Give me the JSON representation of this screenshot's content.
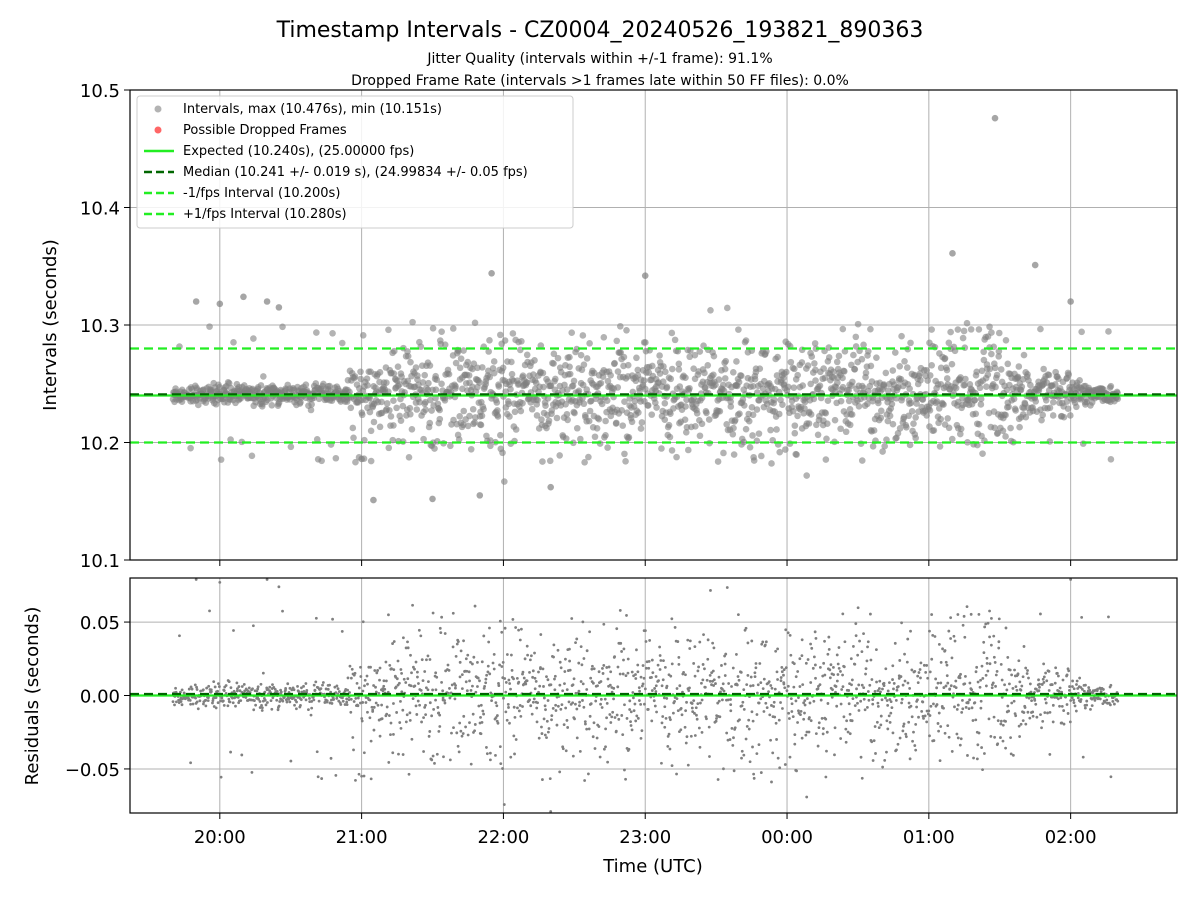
{
  "figure": {
    "title": "Timestamp Intervals - CZ0004_20240526_193821_890363",
    "subtitle1": "Jitter Quality (intervals within +/-1 frame): 91.1%",
    "subtitle2": "Dropped Frame Rate (intervals >1 frames late within 50 FF files): 0.0%"
  },
  "colors": {
    "points": "#808080",
    "dropped": "#ff6666",
    "expected": "#22ee22",
    "median": "#006600",
    "bounds": "#22ee22",
    "grid": "#b0b0b0"
  },
  "chart_data": [
    {
      "type": "scatter",
      "name": "intervals-panel",
      "ylabel": "Intervals (seconds)",
      "xlim": [
        "19:22",
        "02:45"
      ],
      "ylim": [
        10.1,
        10.5
      ],
      "yticks": [
        10.1,
        10.2,
        10.3,
        10.4,
        10.5
      ],
      "ytick_labels": [
        "10.1",
        "10.2",
        "10.3",
        "10.4",
        "10.5"
      ],
      "grid": true,
      "legend_position": "top-left",
      "series": [
        {
          "name": "Intervals, max (10.476s), min (10.151s)",
          "kind": "scatter",
          "color": "#808080",
          "x_range": [
            "19:40",
            "02:20"
          ],
          "center": 10.241,
          "sparse_outliers": [
            {
              "x": "19:50",
              "y": 10.32
            },
            {
              "x": "20:00",
              "y": 10.318
            },
            {
              "x": "20:10",
              "y": 10.324
            },
            {
              "x": "20:20",
              "y": 10.32
            },
            {
              "x": "20:25",
              "y": 10.315
            },
            {
              "x": "21:00",
              "y": 10.186
            },
            {
              "x": "21:05",
              "y": 10.151
            },
            {
              "x": "21:30",
              "y": 10.152
            },
            {
              "x": "21:50",
              "y": 10.155
            },
            {
              "x": "21:55",
              "y": 10.344
            },
            {
              "x": "22:20",
              "y": 10.162
            },
            {
              "x": "23:00",
              "y": 10.342
            },
            {
              "x": "01:10",
              "y": 10.361
            },
            {
              "x": "01:28",
              "y": 10.476
            },
            {
              "x": "01:45",
              "y": 10.351
            },
            {
              "x": "02:00",
              "y": 10.32
            }
          ]
        },
        {
          "name": "Possible Dropped Frames",
          "kind": "scatter",
          "color": "#ff6666",
          "values": []
        },
        {
          "name": "Expected (10.240s), (25.00000 fps)",
          "kind": "hline",
          "y": 10.24,
          "color": "#22ee22",
          "dash": "solid"
        },
        {
          "name": "Median (10.241 +/- 0.019 s), (24.99834 +/- 0.05 fps)",
          "kind": "hline",
          "y": 10.241,
          "color": "#006600",
          "dash": "dashed"
        },
        {
          "name": "-1/fps Interval (10.200s)",
          "kind": "hline",
          "y": 10.2,
          "color": "#22ee22",
          "dash": "dashed"
        },
        {
          "name": "+1/fps Interval (10.280s)",
          "kind": "hline",
          "y": 10.28,
          "color": "#22ee22",
          "dash": "dashed"
        }
      ]
    },
    {
      "type": "scatter",
      "name": "residuals-panel",
      "xlabel": "Time (UTC)",
      "ylabel": "Residuals (seconds)",
      "xlim": [
        "19:22",
        "02:45"
      ],
      "ylim": [
        -0.08,
        0.08
      ],
      "yticks": [
        -0.05,
        0.0,
        0.05
      ],
      "ytick_labels": [
        "−0.05",
        "0.00",
        "0.05"
      ],
      "xtick_labels": [
        "20:00",
        "21:00",
        "22:00",
        "23:00",
        "00:00",
        "01:00",
        "02:00"
      ],
      "grid": true,
      "series": [
        {
          "name": "Residuals",
          "kind": "scatter",
          "color": "#808080",
          "x_range": [
            "19:40",
            "02:20"
          ],
          "center": 0.0
        },
        {
          "name": "Expected",
          "kind": "hline",
          "y": 0.0,
          "color": "#22ee22",
          "dash": "solid"
        },
        {
          "name": "Median",
          "kind": "hline",
          "y": 0.001,
          "color": "#006600",
          "dash": "dashed"
        }
      ]
    }
  ]
}
